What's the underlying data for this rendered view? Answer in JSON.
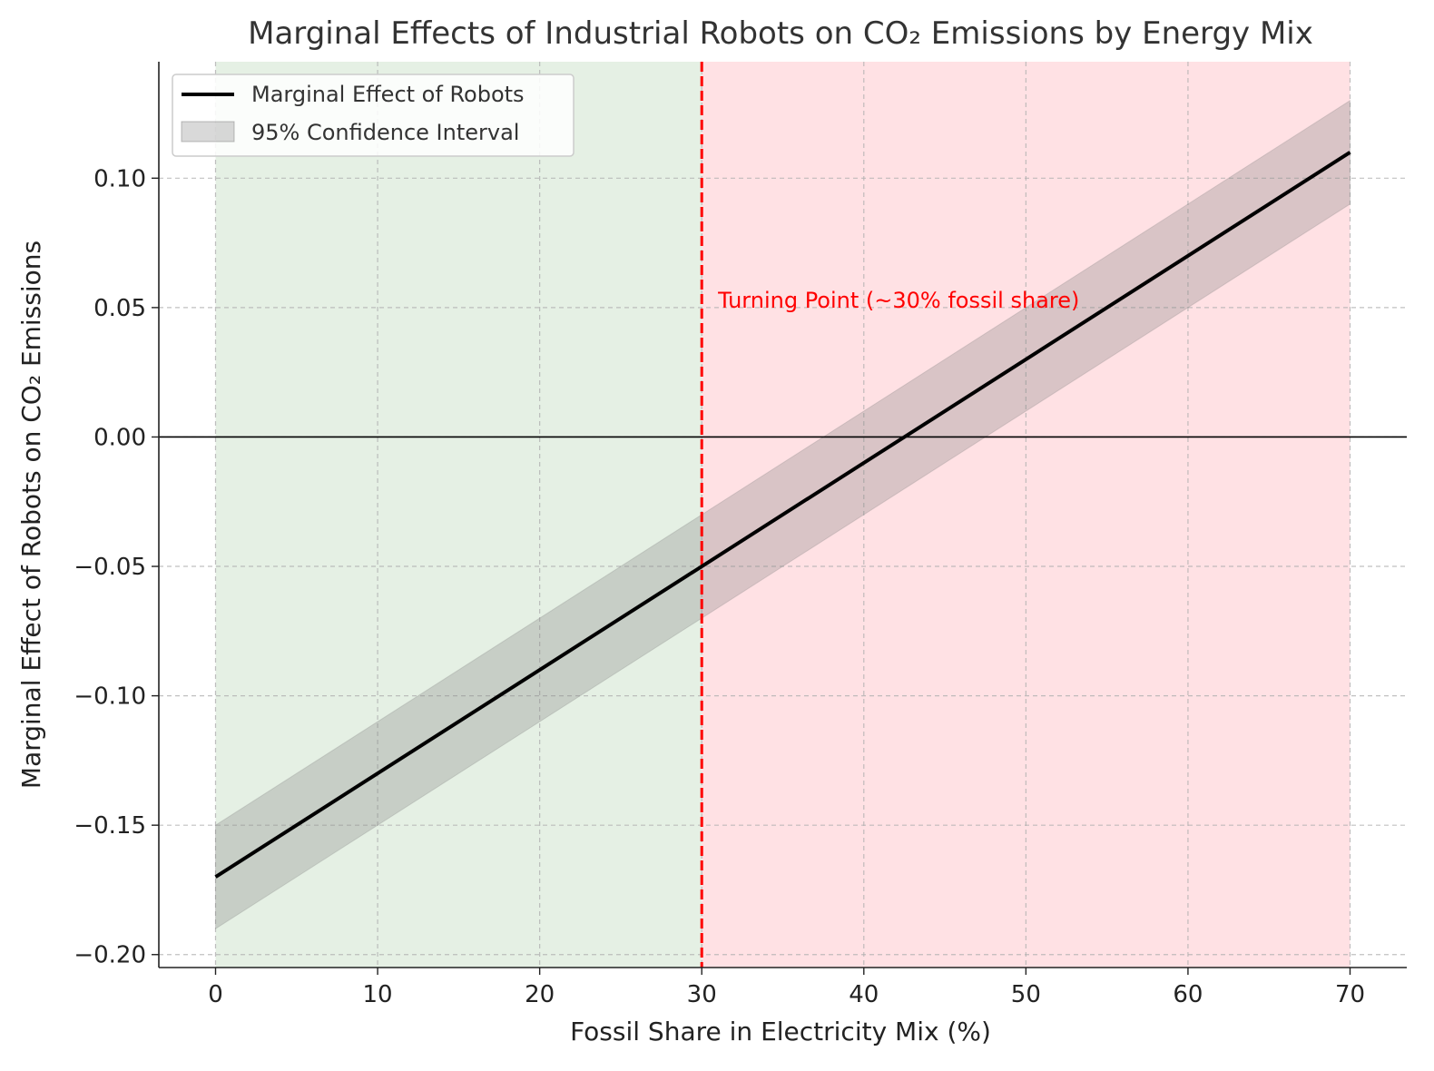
{
  "chart_data": {
    "type": "line",
    "title": "Marginal Effects of Industrial Robots on CO₂ Emissions by Energy Mix",
    "xlabel": "Fossil Share in Electricity Mix (%)",
    "ylabel": "Marginal Effect of Robots on CO₂ Emissions",
    "xlim": [
      -3.5,
      73.5
    ],
    "ylim": [
      -0.205,
      0.145
    ],
    "xticks": [
      0,
      10,
      20,
      30,
      40,
      50,
      60,
      70
    ],
    "xtick_labels": [
      "0",
      "10",
      "20",
      "30",
      "40",
      "50",
      "60",
      "70"
    ],
    "yticks": [
      0.1,
      0.05,
      0.0,
      -0.05,
      -0.1,
      -0.15,
      -0.2
    ],
    "ytick_labels": [
      "0.10",
      "0.05",
      "0.00",
      "−0.05",
      "−0.10",
      "−0.15",
      "−0.20"
    ],
    "grid": true,
    "series": [
      {
        "name": "Marginal Effect of Robots",
        "x": [
          0,
          70
        ],
        "values": [
          -0.17,
          0.11
        ],
        "color": "#000000"
      }
    ],
    "confidence_band": {
      "name": "95% Confidence Interval",
      "x": [
        0,
        70
      ],
      "lower": [
        -0.19,
        0.09
      ],
      "upper": [
        -0.15,
        0.13
      ],
      "color": "#808080"
    },
    "regions": [
      {
        "x_from": 0,
        "x_to": 30,
        "color": "#e5f0e4"
      },
      {
        "x_from": 30,
        "x_to": 70,
        "color": "#ffe1e4"
      }
    ],
    "reference_lines": [
      {
        "axis": "y",
        "value": 0,
        "color": "#000000",
        "style": "solid"
      },
      {
        "axis": "x",
        "value": 30,
        "color": "#ff0000",
        "style": "dashed"
      }
    ],
    "annotations": [
      {
        "text": "Turning Point (~30% fossil share)",
        "x": 31,
        "y": 0.05,
        "color": "#ff0000"
      }
    ],
    "legend": {
      "position": "top-left",
      "entries": [
        "Marginal Effect of Robots",
        "95% Confidence Interval"
      ]
    }
  }
}
